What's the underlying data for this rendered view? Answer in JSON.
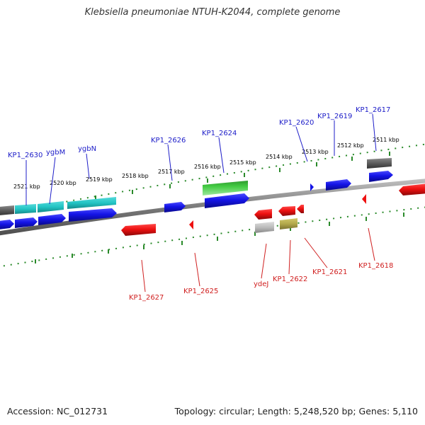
{
  "title": "Klebsiella pneumoniae NTUH-K2044, complete genome",
  "footer": {
    "accession": "Accession: NC_012731",
    "summary": "Topology: circular; Length: 5,248,520 bp; Genes: 5,110"
  },
  "ticks": [
    "2521 kbp",
    "2520 kbp",
    "2519 kbp",
    "2518 kbp",
    "2517 kbp",
    "2516 kbp",
    "2515 kbp",
    "2514 kbp",
    "2513 kbp",
    "2512 kbp",
    "2511 kbp"
  ],
  "forward_genes": [
    "KP1_2630",
    "ygbM",
    "ygbN",
    "KP1_2626",
    "KP1_2624",
    "KP1_2620",
    "KP1_2619",
    "KP1_2617"
  ],
  "reverse_genes": [
    "KP1_2627",
    "KP1_2625",
    "ydeJ",
    "KP1_2622",
    "KP1_2621",
    "KP1_2618"
  ],
  "colors": {
    "forward_label": "#1c1cc8",
    "reverse_label": "#d02020",
    "backbone": "#8a8a8a",
    "tick_dots": "#2a8a2a",
    "cds_forward": "#1414e6",
    "cds_reverse": "#ee1111",
    "rna_green": "#33bb33",
    "cyan": "#22c4c4",
    "grey_feature": "#666666",
    "light_grey_feature": "#bbbbbb",
    "olive_feature": "#b2a84a"
  }
}
